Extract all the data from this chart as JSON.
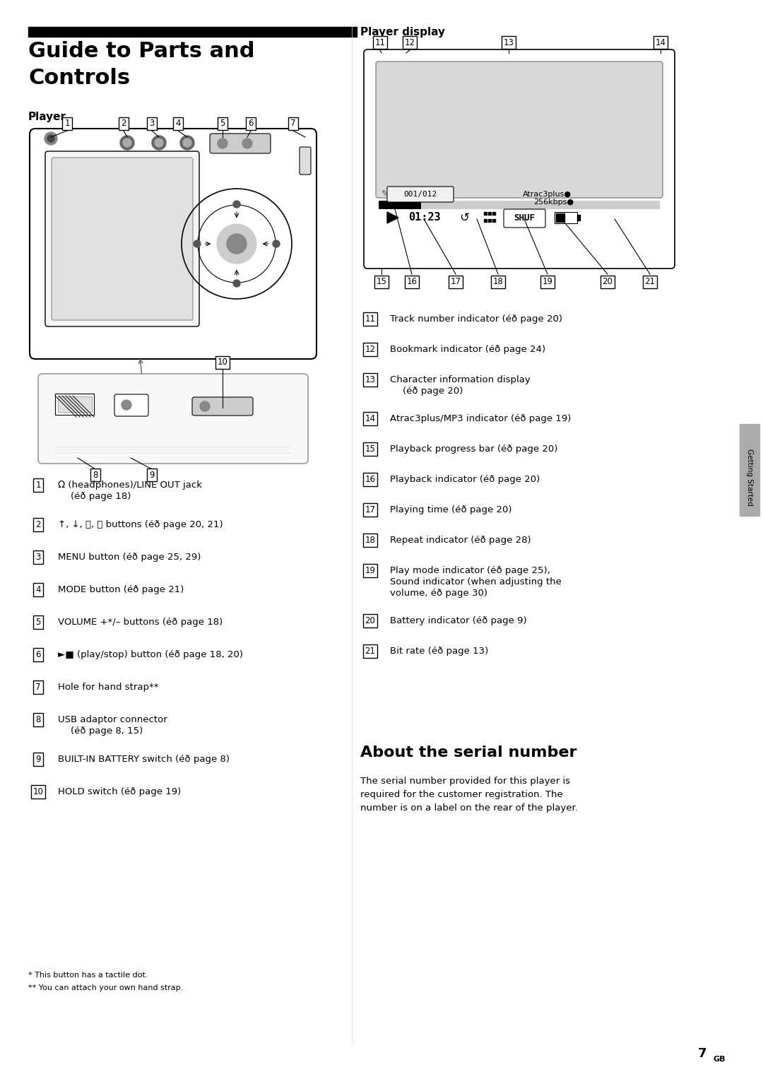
{
  "bg_color": "#ffffff",
  "page_width": 10.8,
  "page_height": 15.34,
  "title": "Guide to Parts and\nControls",
  "title_fontsize": 22,
  "section_player_label": "Player",
  "section_display_label": "Player display",
  "getting_started_label": "Getting Started",
  "tab_color": "#888888",
  "footer_text": "7",
  "footer_gb": "GB",
  "left_descriptions": [
    {
      "num": "1",
      "text1": " (headphones)/LINE OUT jack",
      "text2": "(éð page 18)"
    },
    {
      "num": "2",
      "text1": "↑, ↓, ⏮, ⏭ buttons (éð page 20, 21)",
      "text2": ""
    },
    {
      "num": "3",
      "text1": "MENU button (éð page 25, 29)",
      "text2": ""
    },
    {
      "num": "4",
      "text1": "MODE button (éð page 21)",
      "text2": ""
    },
    {
      "num": "5",
      "text1": "VOLUME +*/– buttons (éð page 18)",
      "text2": ""
    },
    {
      "num": "6",
      "text1": "►■ (play/stop) button (éð page 18, 20)",
      "text2": ""
    },
    {
      "num": "7",
      "text1": "Hole for hand strap**",
      "text2": ""
    },
    {
      "num": "8",
      "text1": "USB adaptor connector",
      "text2": "(éð page 8, 15)"
    },
    {
      "num": "9",
      "text1": "BUILT-IN BATTERY switch (éð page 8)",
      "text2": ""
    },
    {
      "num": "10",
      "text1": "HOLD switch (éð page 19)",
      "text2": ""
    }
  ],
  "right_descriptions": [
    {
      "num": "11",
      "text1": "Track number indicator (éð page 20)",
      "text2": ""
    },
    {
      "num": "12",
      "text1": "Bookmark indicator (éð page 24)",
      "text2": ""
    },
    {
      "num": "13",
      "text1": "Character information display",
      "text2": "(éð page 20)"
    },
    {
      "num": "14",
      "text1": "Atrac3plus/MP3 indicator (éð page 19)",
      "text2": ""
    },
    {
      "num": "15",
      "text1": "Playback progress bar (éð page 20)",
      "text2": ""
    },
    {
      "num": "16",
      "text1": "Playback indicator (éð page 20)",
      "text2": ""
    },
    {
      "num": "17",
      "text1": "Playing time (éð page 20)",
      "text2": ""
    },
    {
      "num": "18",
      "text1": "Repeat indicator (éð page 28)",
      "text2": ""
    },
    {
      "num": "19",
      "text1": "Play mode indicator (éð page 25),",
      "text2": "Sound indicator (when adjusting the",
      "text3": "volume, éð page 30)"
    },
    {
      "num": "20",
      "text1": "Battery indicator (éð page 9)",
      "text2": ""
    },
    {
      "num": "21",
      "text1": "Bit rate (éð page 13)",
      "text2": ""
    }
  ],
  "about_title": "About the serial number",
  "about_body": "The serial number provided for this player is\nrequired for the customer registration. The\nnumber is on a label on the rear of the player.",
  "footnote1": "* This button has a tactile dot.",
  "footnote2": "** You can attach your own hand strap."
}
